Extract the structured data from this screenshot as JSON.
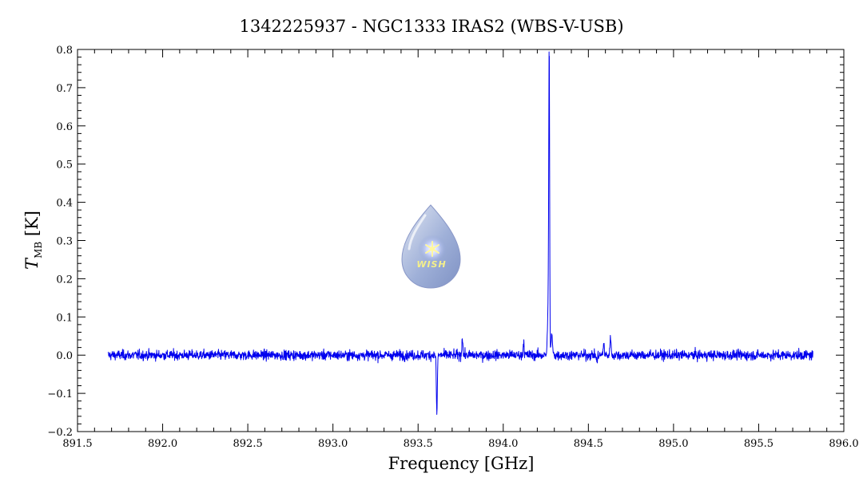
{
  "chart_data": {
    "type": "line",
    "title": "1342225937 - NGC1333 IRAS2 (WBS-V-USB)",
    "xlabel": "Frequency [GHz]",
    "ylabel_symbol": "T",
    "ylabel_subscript": "MB",
    "ylabel_unit": "[K]",
    "xlim": [
      891.5,
      896.0
    ],
    "ylim": [
      -0.2,
      0.8
    ],
    "x_ticks": [
      891.5,
      892.0,
      892.5,
      893.0,
      893.5,
      894.0,
      894.5,
      895.0,
      895.5,
      896.0
    ],
    "x_tick_labels": [
      "891.5",
      "892.0",
      "892.5",
      "893.0",
      "893.5",
      "894.0",
      "894.5",
      "895.0",
      "895.5",
      "896.0"
    ],
    "y_ticks": [
      -0.2,
      -0.1,
      0.0,
      0.1,
      0.2,
      0.3,
      0.4,
      0.5,
      0.6,
      0.7,
      0.8
    ],
    "y_tick_labels": [
      "−0.2",
      "−0.1",
      "0.0",
      "0.1",
      "0.2",
      "0.3",
      "0.4",
      "0.5",
      "0.6",
      "0.7",
      "0.8"
    ],
    "grid": false,
    "line_color": "#0000ee",
    "series": [
      {
        "x_range": [
          891.68,
          895.82
        ],
        "baseline": 0.0,
        "noise_rms": 0.009,
        "features": [
          {
            "x": 894.27,
            "y": 0.74,
            "kind": "emission-peak"
          },
          {
            "x": 894.265,
            "y": 0.16,
            "kind": "emission-shoulder"
          },
          {
            "x": 894.285,
            "y": 0.05,
            "kind": "emission-wing"
          },
          {
            "x": 893.61,
            "y": -0.155,
            "kind": "absorption-spike"
          },
          {
            "x": 893.76,
            "y": 0.05,
            "kind": "weak-emission"
          },
          {
            "x": 894.12,
            "y": 0.037,
            "kind": "weak-emission"
          },
          {
            "x": 894.63,
            "y": 0.055,
            "kind": "weak-emission"
          },
          {
            "x": 894.59,
            "y": 0.035,
            "kind": "weak-emission"
          },
          {
            "x": 894.55,
            "y": -0.02,
            "kind": "weak-absorption"
          }
        ]
      }
    ]
  },
  "logo": {
    "text": "WISH"
  }
}
